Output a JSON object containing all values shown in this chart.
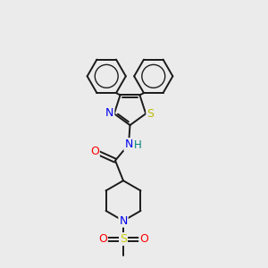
{
  "background_color": "#ebebeb",
  "atom_colors": {
    "C": "#000000",
    "N": "#0000ee",
    "O": "#ff0000",
    "S_thz": "#bbbb00",
    "S_sul": "#cccc00",
    "H": "#008080"
  },
  "bond_color": "#1a1a1a",
  "bond_width": 1.4,
  "figsize": [
    3.0,
    3.0
  ],
  "dpi": 100,
  "xlim": [
    0,
    10
  ],
  "ylim": [
    0,
    10
  ]
}
